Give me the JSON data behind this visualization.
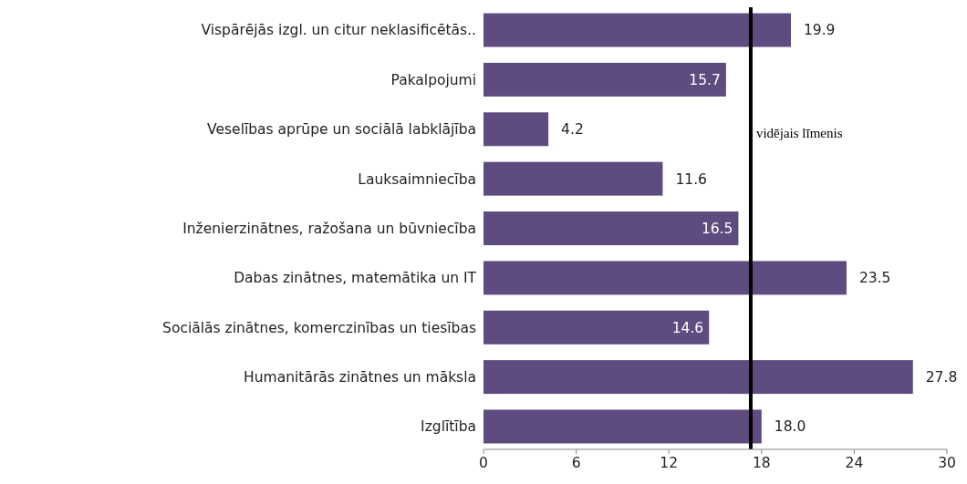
{
  "chart_data": {
    "type": "bar",
    "orientation": "horizontal",
    "categories": [
      "Vispārējās izgl. un citur neklasificētās..",
      "Pakalpojumi",
      "Veselības aprūpe un sociālā labklājība",
      "Lauksaimniecība",
      "Inženierzinātnes, ražošana un būvniecība",
      "Dabas zinātnes, matemātika un IT",
      "Sociālās zinātnes, komerczinības un tiesības",
      "Humanitārās zinātnes un māksla",
      "Izglītība"
    ],
    "values": [
      19.9,
      15.7,
      4.2,
      11.6,
      16.5,
      23.5,
      14.6,
      27.8,
      18.0
    ],
    "value_labels": [
      "19.9",
      "15.7",
      "4.2",
      "11.6",
      "16.5",
      "23.5",
      "14.6",
      "27.8",
      "18.0"
    ],
    "color": "#5e4b80",
    "xlim": [
      0,
      30
    ],
    "xticks": [
      0,
      6,
      12,
      18,
      24,
      30
    ],
    "grid": false,
    "ref_lines": [
      {
        "axis": "x",
        "value": 17.3,
        "label": "vidējais līmenis",
        "color": "#000000"
      }
    ]
  }
}
